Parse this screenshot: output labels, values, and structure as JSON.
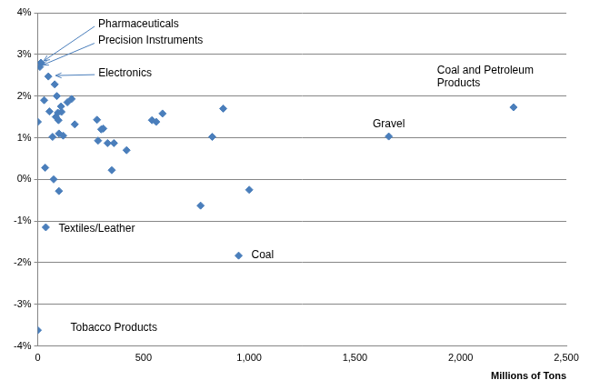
{
  "chart_data": {
    "type": "scatter",
    "x_label": "Millions of Tons",
    "x": [
      0,
      38,
      950,
      1660,
      2250,
      15,
      10,
      50,
      0,
      30,
      55,
      70,
      80,
      85,
      90,
      95,
      100,
      98,
      110,
      112,
      75,
      35,
      100,
      120,
      140,
      160,
      175,
      280,
      285,
      300,
      310,
      330,
      360,
      350,
      420,
      540,
      560,
      590,
      770,
      825,
      877,
      1000
    ],
    "values": [
      -3.62,
      -1.15,
      -1.83,
      1.03,
      1.73,
      2.8,
      2.7,
      2.47,
      1.38,
      1.9,
      1.63,
      1.02,
      2.28,
      1.5,
      2.0,
      1.6,
      1.1,
      1.42,
      1.75,
      1.62,
      0.0,
      0.28,
      -0.28,
      1.05,
      1.85,
      1.93,
      1.32,
      1.43,
      0.93,
      1.2,
      1.22,
      0.87,
      0.87,
      0.22,
      0.7,
      1.42,
      1.38,
      1.58,
      -0.63,
      1.02,
      1.7,
      -0.25
    ],
    "color": "#4a7ebb",
    "marker": "diamond",
    "grid": true,
    "xlim": [
      0,
      2500
    ],
    "xticks": [
      0,
      500,
      {
        "value": 1000,
        "label": "1,000"
      },
      {
        "value": 1500,
        "label": "1,500"
      },
      {
        "value": 2000,
        "label": "2,000"
      },
      {
        "value": 2500,
        "label": "2,500"
      }
    ],
    "ylim": [
      -4,
      4
    ],
    "yticks": [
      {
        "value": -4,
        "label": "-4%"
      },
      {
        "value": -3,
        "label": "-3%"
      },
      {
        "value": -2,
        "label": "-2%"
      },
      {
        "value": -1,
        "label": "-1%"
      },
      {
        "value": 0,
        "label": "0%"
      },
      {
        "value": 1,
        "label": "1%"
      },
      {
        "value": 2,
        "label": "2%"
      },
      {
        "value": 3,
        "label": "3%"
      },
      {
        "value": 4,
        "label": "4%"
      }
    ],
    "annotations": [
      {
        "text": "Tobacco Products",
        "x": 0,
        "y": -3.62
      },
      {
        "text": "Textiles/Leather",
        "x": 38,
        "y": -1.15
      },
      {
        "text": "Coal",
        "x": 950,
        "y": -1.83
      },
      {
        "text": "Gravel",
        "x": 1660,
        "y": 1.03
      },
      {
        "text": "Coal and Petroleum Products",
        "x": 2250,
        "y": 1.73
      },
      {
        "text": "Pharmaceuticals",
        "x": 15,
        "y": 2.8
      },
      {
        "text": "Precision Instruments",
        "x": 10,
        "y": 2.7
      },
      {
        "text": "Electronics",
        "x": 50,
        "y": 2.47
      }
    ]
  }
}
